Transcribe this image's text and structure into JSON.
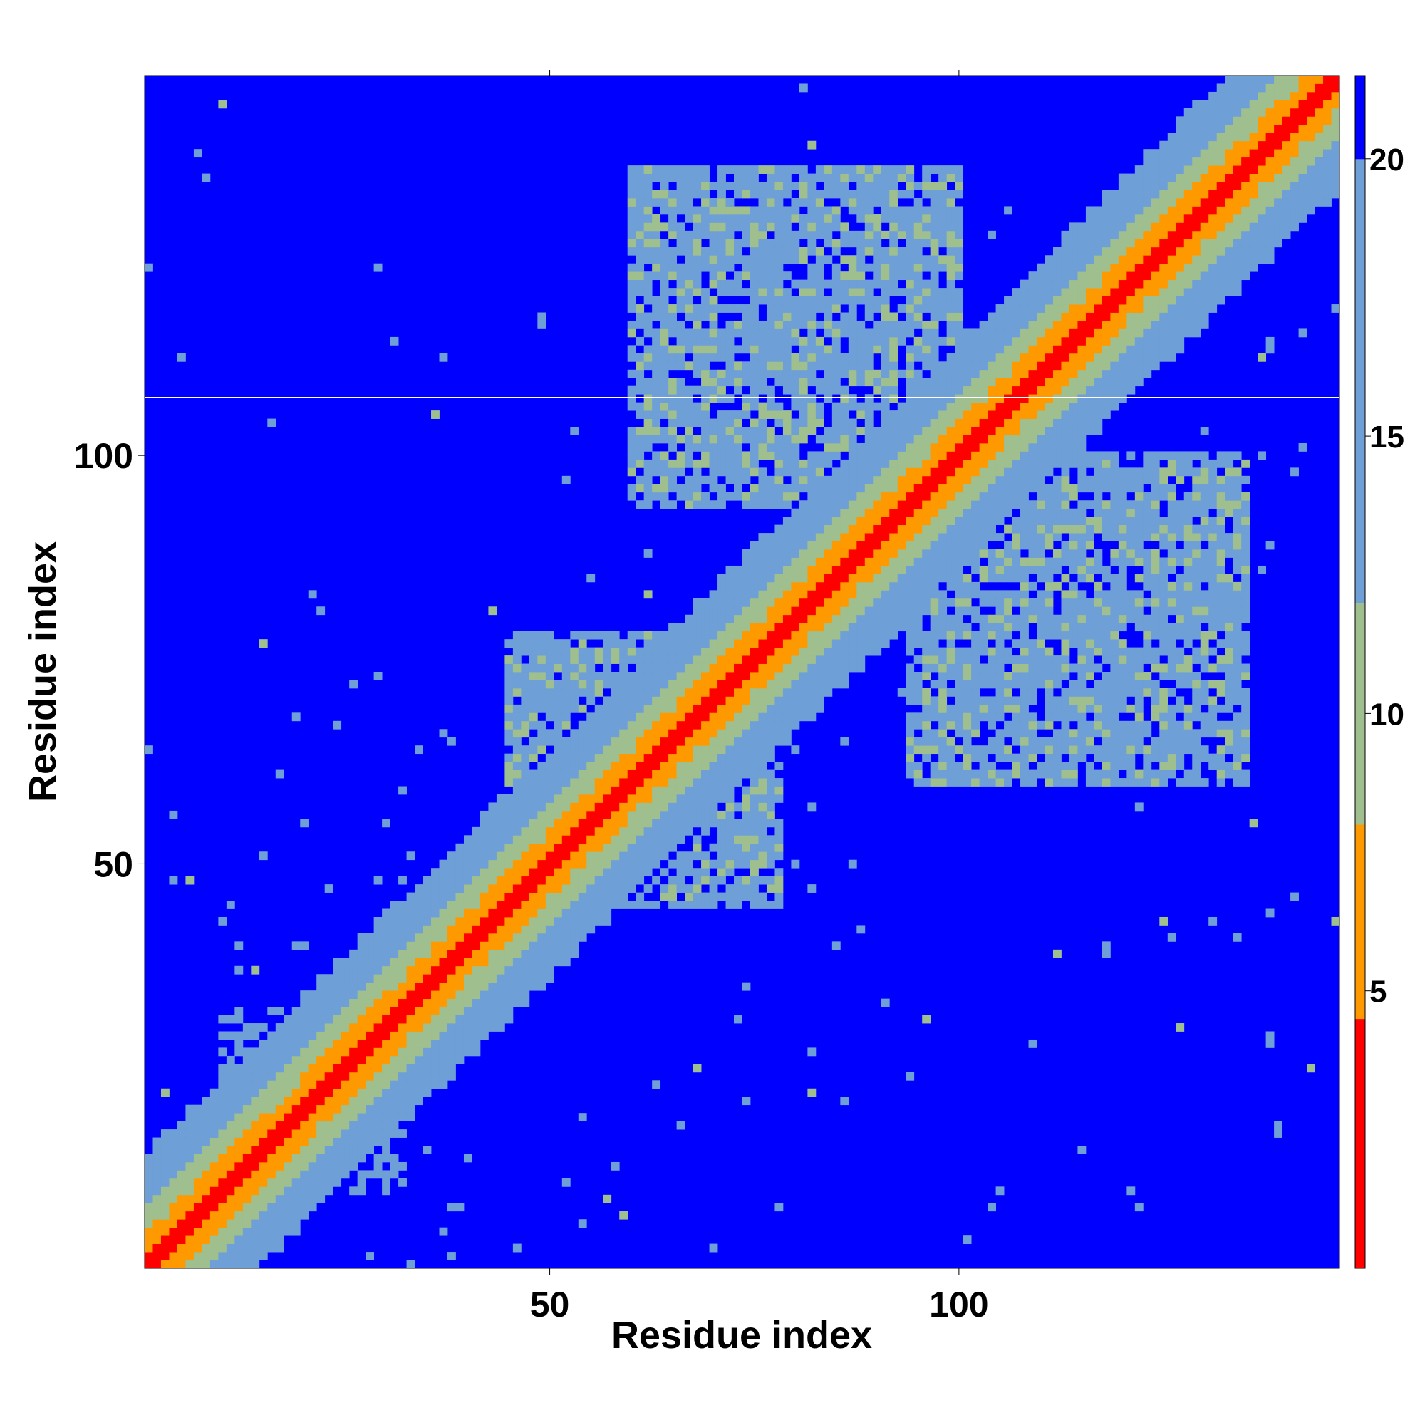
{
  "chart_data": {
    "type": "heatmap",
    "title": "",
    "xlabel": "Residue index",
    "ylabel": "Residue index",
    "xlim": [
      1,
      146
    ],
    "ylim": [
      1,
      146
    ],
    "x_ticks": [
      "50",
      "100"
    ],
    "y_ticks": [
      "50",
      "100"
    ],
    "colorbar": {
      "ticks": [
        "5",
        "10",
        "15",
        "20"
      ],
      "range": [
        0,
        21.5
      ],
      "colors": {
        "near": "#ff0000",
        "contact": "#ff9900",
        "mid": "#9fbf8f",
        "far": "#6e9fd6",
        "background": "#0000ff"
      }
    },
    "description_of_pattern": "",
    "diagonal_band_width": 14,
    "contact_regions": [
      {
        "i_range": [
          60,
          100
        ],
        "j_range": [
          94,
          135
        ],
        "strength": "strong"
      },
      {
        "i_range": [
          45,
          75
        ],
        "j_range": [
          45,
          78
        ],
        "strength": "strong"
      },
      {
        "i_range": [
          10,
          30
        ],
        "j_range": [
          10,
          32
        ],
        "strength": "medium"
      }
    ]
  }
}
